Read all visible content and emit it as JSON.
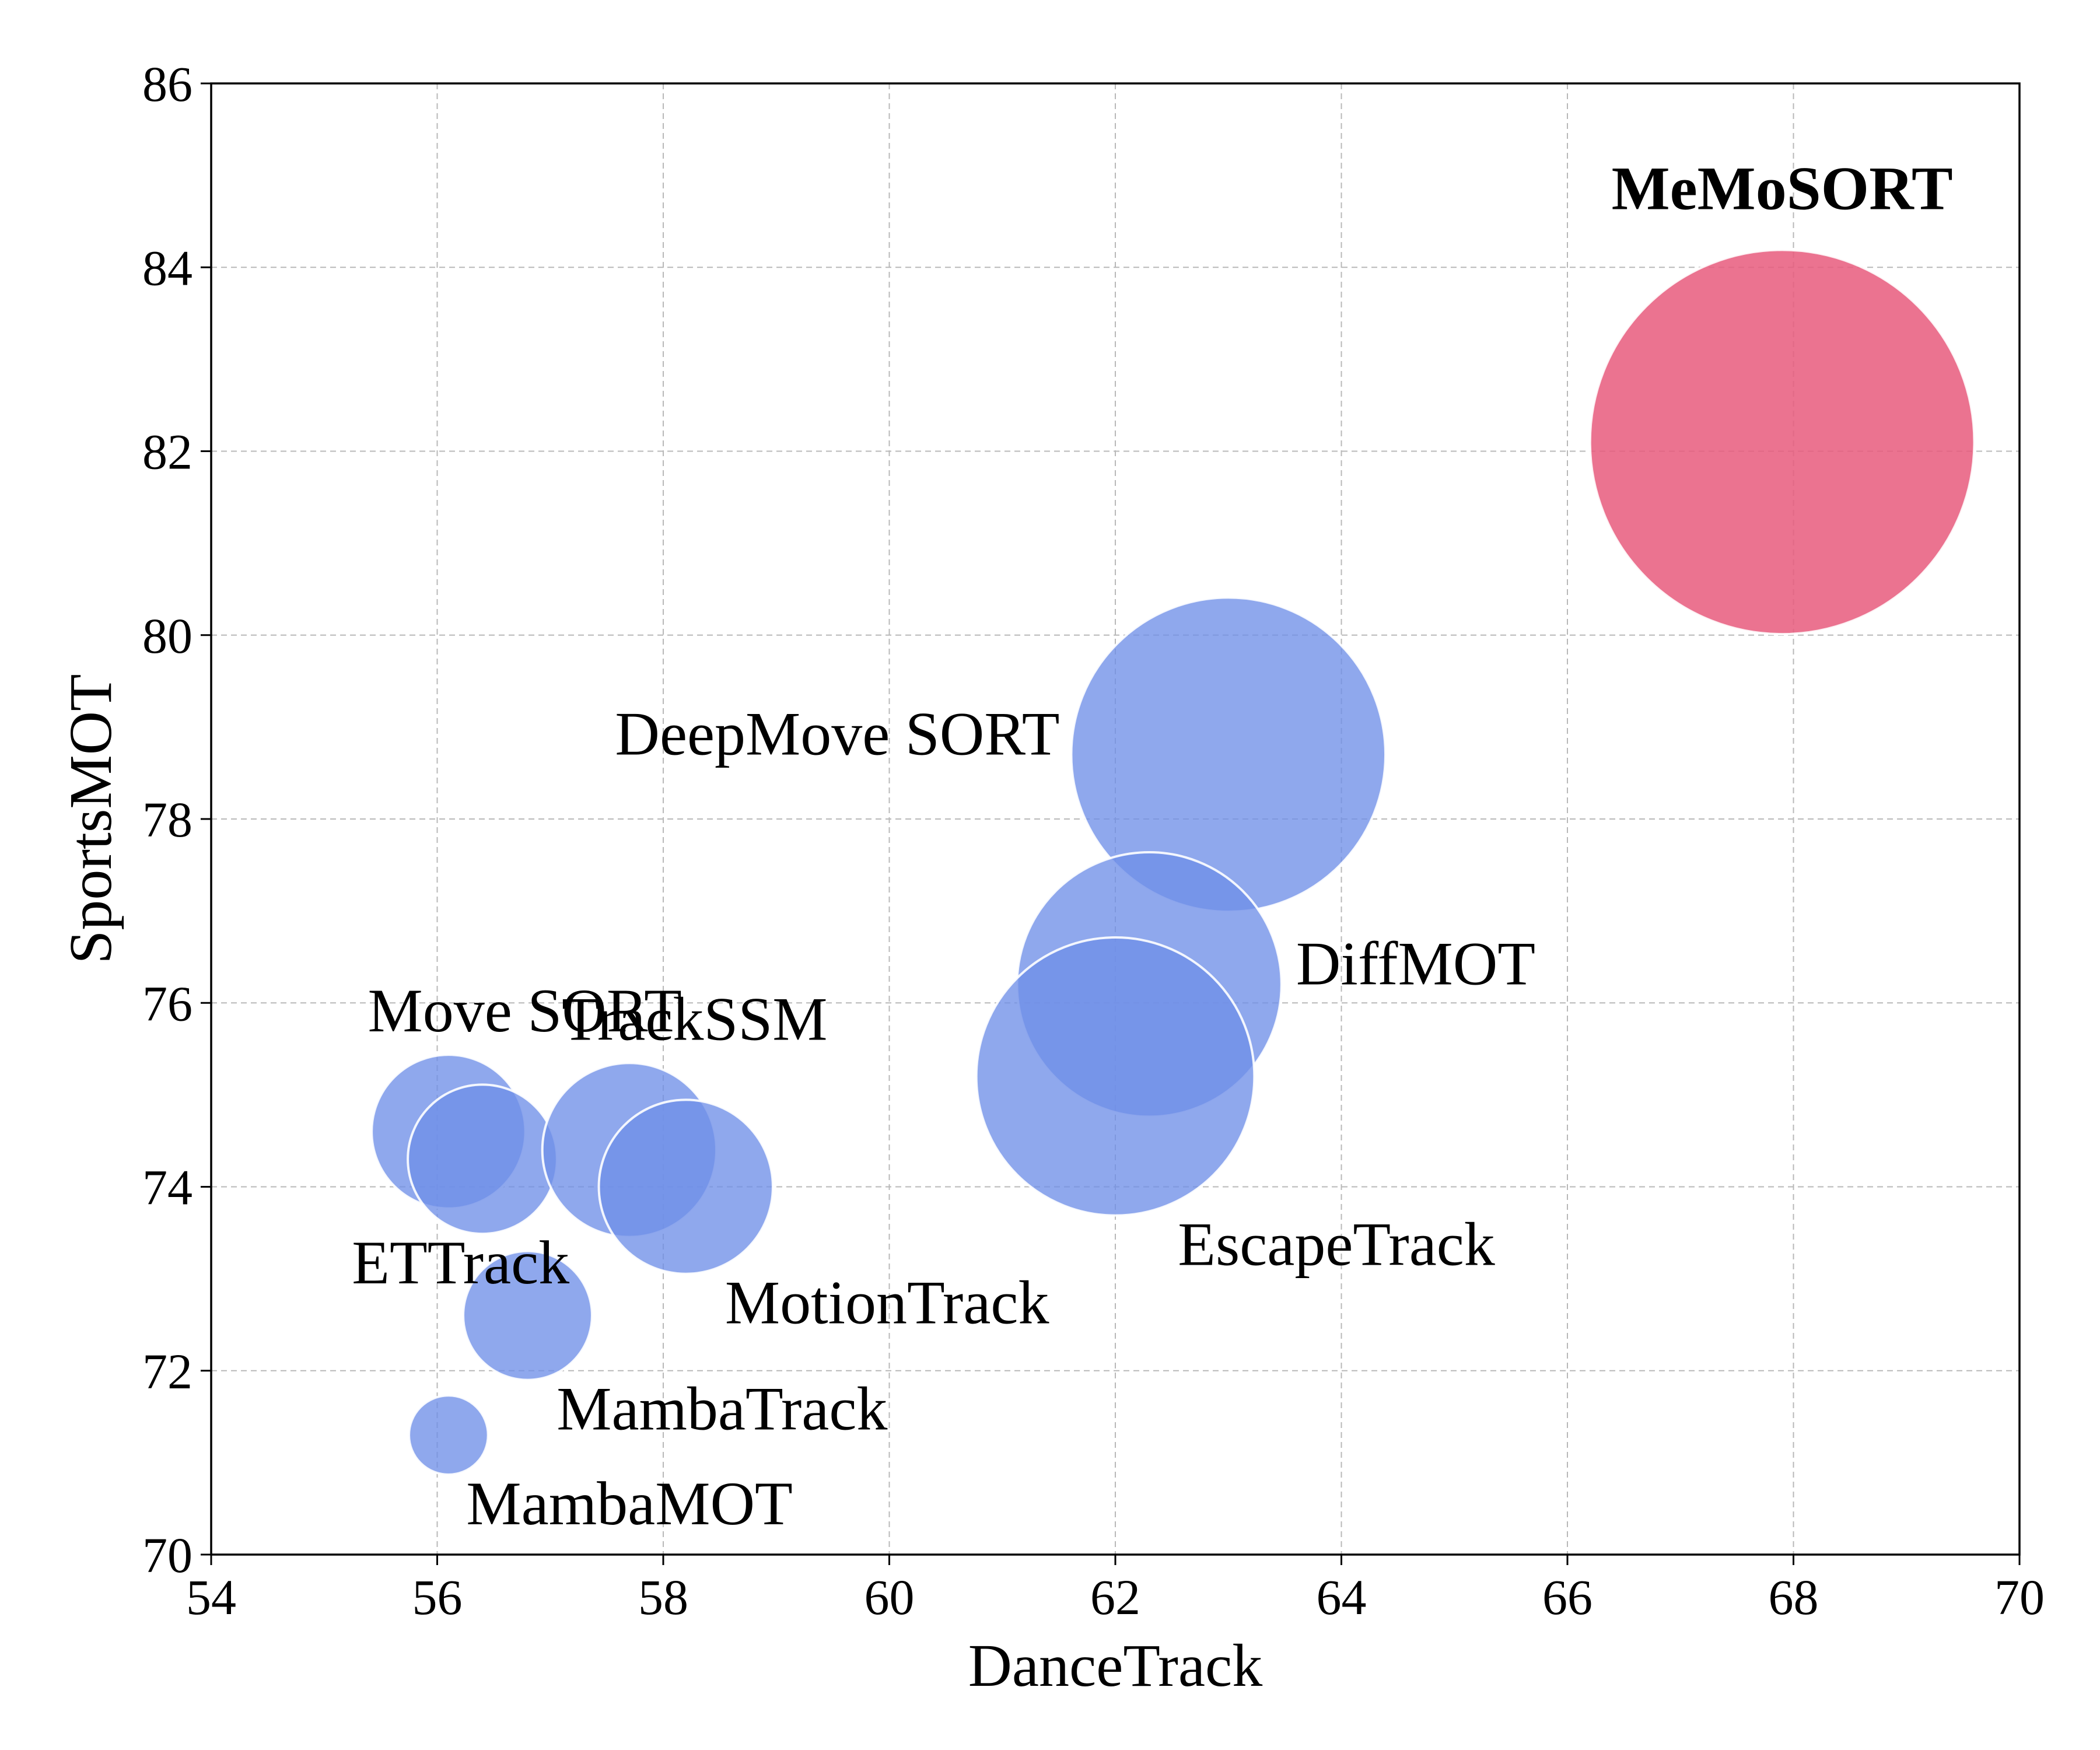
{
  "chart_data": {
    "type": "scatter",
    "variant": "bubble",
    "xlabel": "DanceTrack",
    "ylabel": "SportsMOT",
    "xlim": [
      54,
      70
    ],
    "ylim": [
      70,
      86
    ],
    "xticks": [
      54,
      56,
      58,
      60,
      62,
      64,
      66,
      68,
      70
    ],
    "yticks": [
      70,
      72,
      74,
      76,
      78,
      80,
      82,
      84,
      86
    ],
    "grid": true,
    "colors": {
      "baseline": "#6F8FE8",
      "highlight": "#E75A7C"
    },
    "points": [
      {
        "name": "Move SORT",
        "x": 56.1,
        "y": 74.6,
        "size": 0.68,
        "highlight": false,
        "label_anchor": "top-left"
      },
      {
        "name": "ETTrack",
        "x": 56.4,
        "y": 74.3,
        "size": 0.66,
        "highlight": false,
        "label_anchor": "bottom-left"
      },
      {
        "name": "TrackSSM",
        "x": 57.7,
        "y": 74.4,
        "size": 0.77,
        "highlight": false,
        "label_anchor": "top"
      },
      {
        "name": "MotionTrack",
        "x": 58.2,
        "y": 74.0,
        "size": 0.77,
        "highlight": false,
        "label_anchor": "bottom-right"
      },
      {
        "name": "MambaTrack",
        "x": 56.8,
        "y": 72.6,
        "size": 0.57,
        "highlight": false,
        "label_anchor": "bottom-right"
      },
      {
        "name": "MambaMOT",
        "x": 56.1,
        "y": 71.3,
        "size": 0.35,
        "highlight": false,
        "label_anchor": "bottom-right"
      },
      {
        "name": "DeepMove SORT",
        "x": 63.0,
        "y": 78.7,
        "size": 1.39,
        "highlight": false,
        "label_anchor": "left"
      },
      {
        "name": "DiffMOT",
        "x": 62.3,
        "y": 76.2,
        "size": 1.17,
        "highlight": false,
        "label_anchor": "right"
      },
      {
        "name": "EscapeTrack",
        "x": 62.0,
        "y": 75.2,
        "size": 1.23,
        "highlight": false,
        "label_anchor": "bottom-right"
      },
      {
        "name": "MeMoSORT",
        "x": 67.9,
        "y": 82.1,
        "size": 1.7,
        "highlight": true,
        "label_anchor": "top"
      }
    ]
  }
}
